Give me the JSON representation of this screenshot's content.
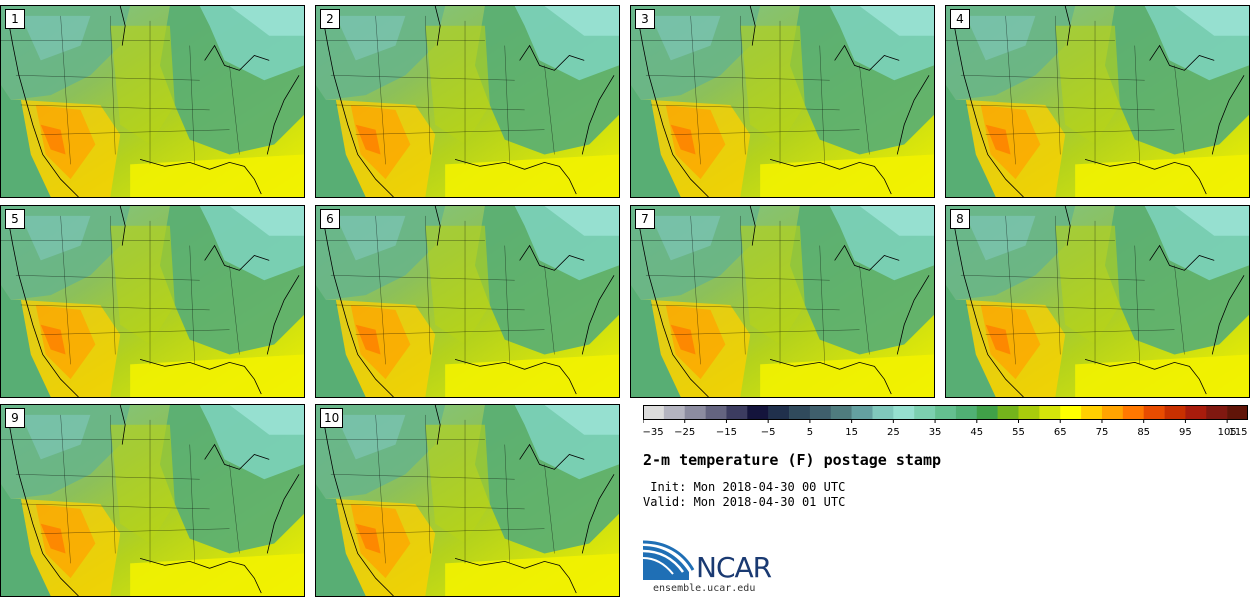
{
  "panels": [
    {
      "label": "1"
    },
    {
      "label": "2"
    },
    {
      "label": "3"
    },
    {
      "label": "4"
    },
    {
      "label": "5"
    },
    {
      "label": "6"
    },
    {
      "label": "7"
    },
    {
      "label": "8"
    },
    {
      "label": "9"
    },
    {
      "label": "10"
    }
  ],
  "colorbar": {
    "colors": [
      "#dcdcdc",
      "#b4b4c0",
      "#8c8ca0",
      "#646480",
      "#3c3c60",
      "#14143c",
      "#20304c",
      "#304a5c",
      "#3f5f6c",
      "#4f7c7e",
      "#64a0a0",
      "#80c8bc",
      "#96e0d0",
      "#7cd0b0",
      "#64c090",
      "#50b074",
      "#40a048",
      "#74b41c",
      "#a8cc0c",
      "#d4e40a",
      "#ffff00",
      "#ffd000",
      "#ffa400",
      "#ff7800",
      "#e84c00",
      "#c83000",
      "#a81c0c",
      "#801810",
      "#601408"
    ],
    "tick_labels": [
      "−35",
      "−25",
      "−15",
      "−5",
      "5",
      "15",
      "25",
      "35",
      "45",
      "55",
      "65",
      "75",
      "85",
      "95",
      "105",
      "115"
    ]
  },
  "title": "2-m temperature (F) postage stamp",
  "init": " Init: Mon 2018-04-30 00 UTC",
  "valid": "Valid: Mon 2018-04-30 01 UTC",
  "logo_text": "NCAR",
  "site": "ensemble.ucar.edu",
  "logo_colors": {
    "arc": "#1f6fb5",
    "text": "#1a3a72",
    "bg": "#ffffff"
  }
}
